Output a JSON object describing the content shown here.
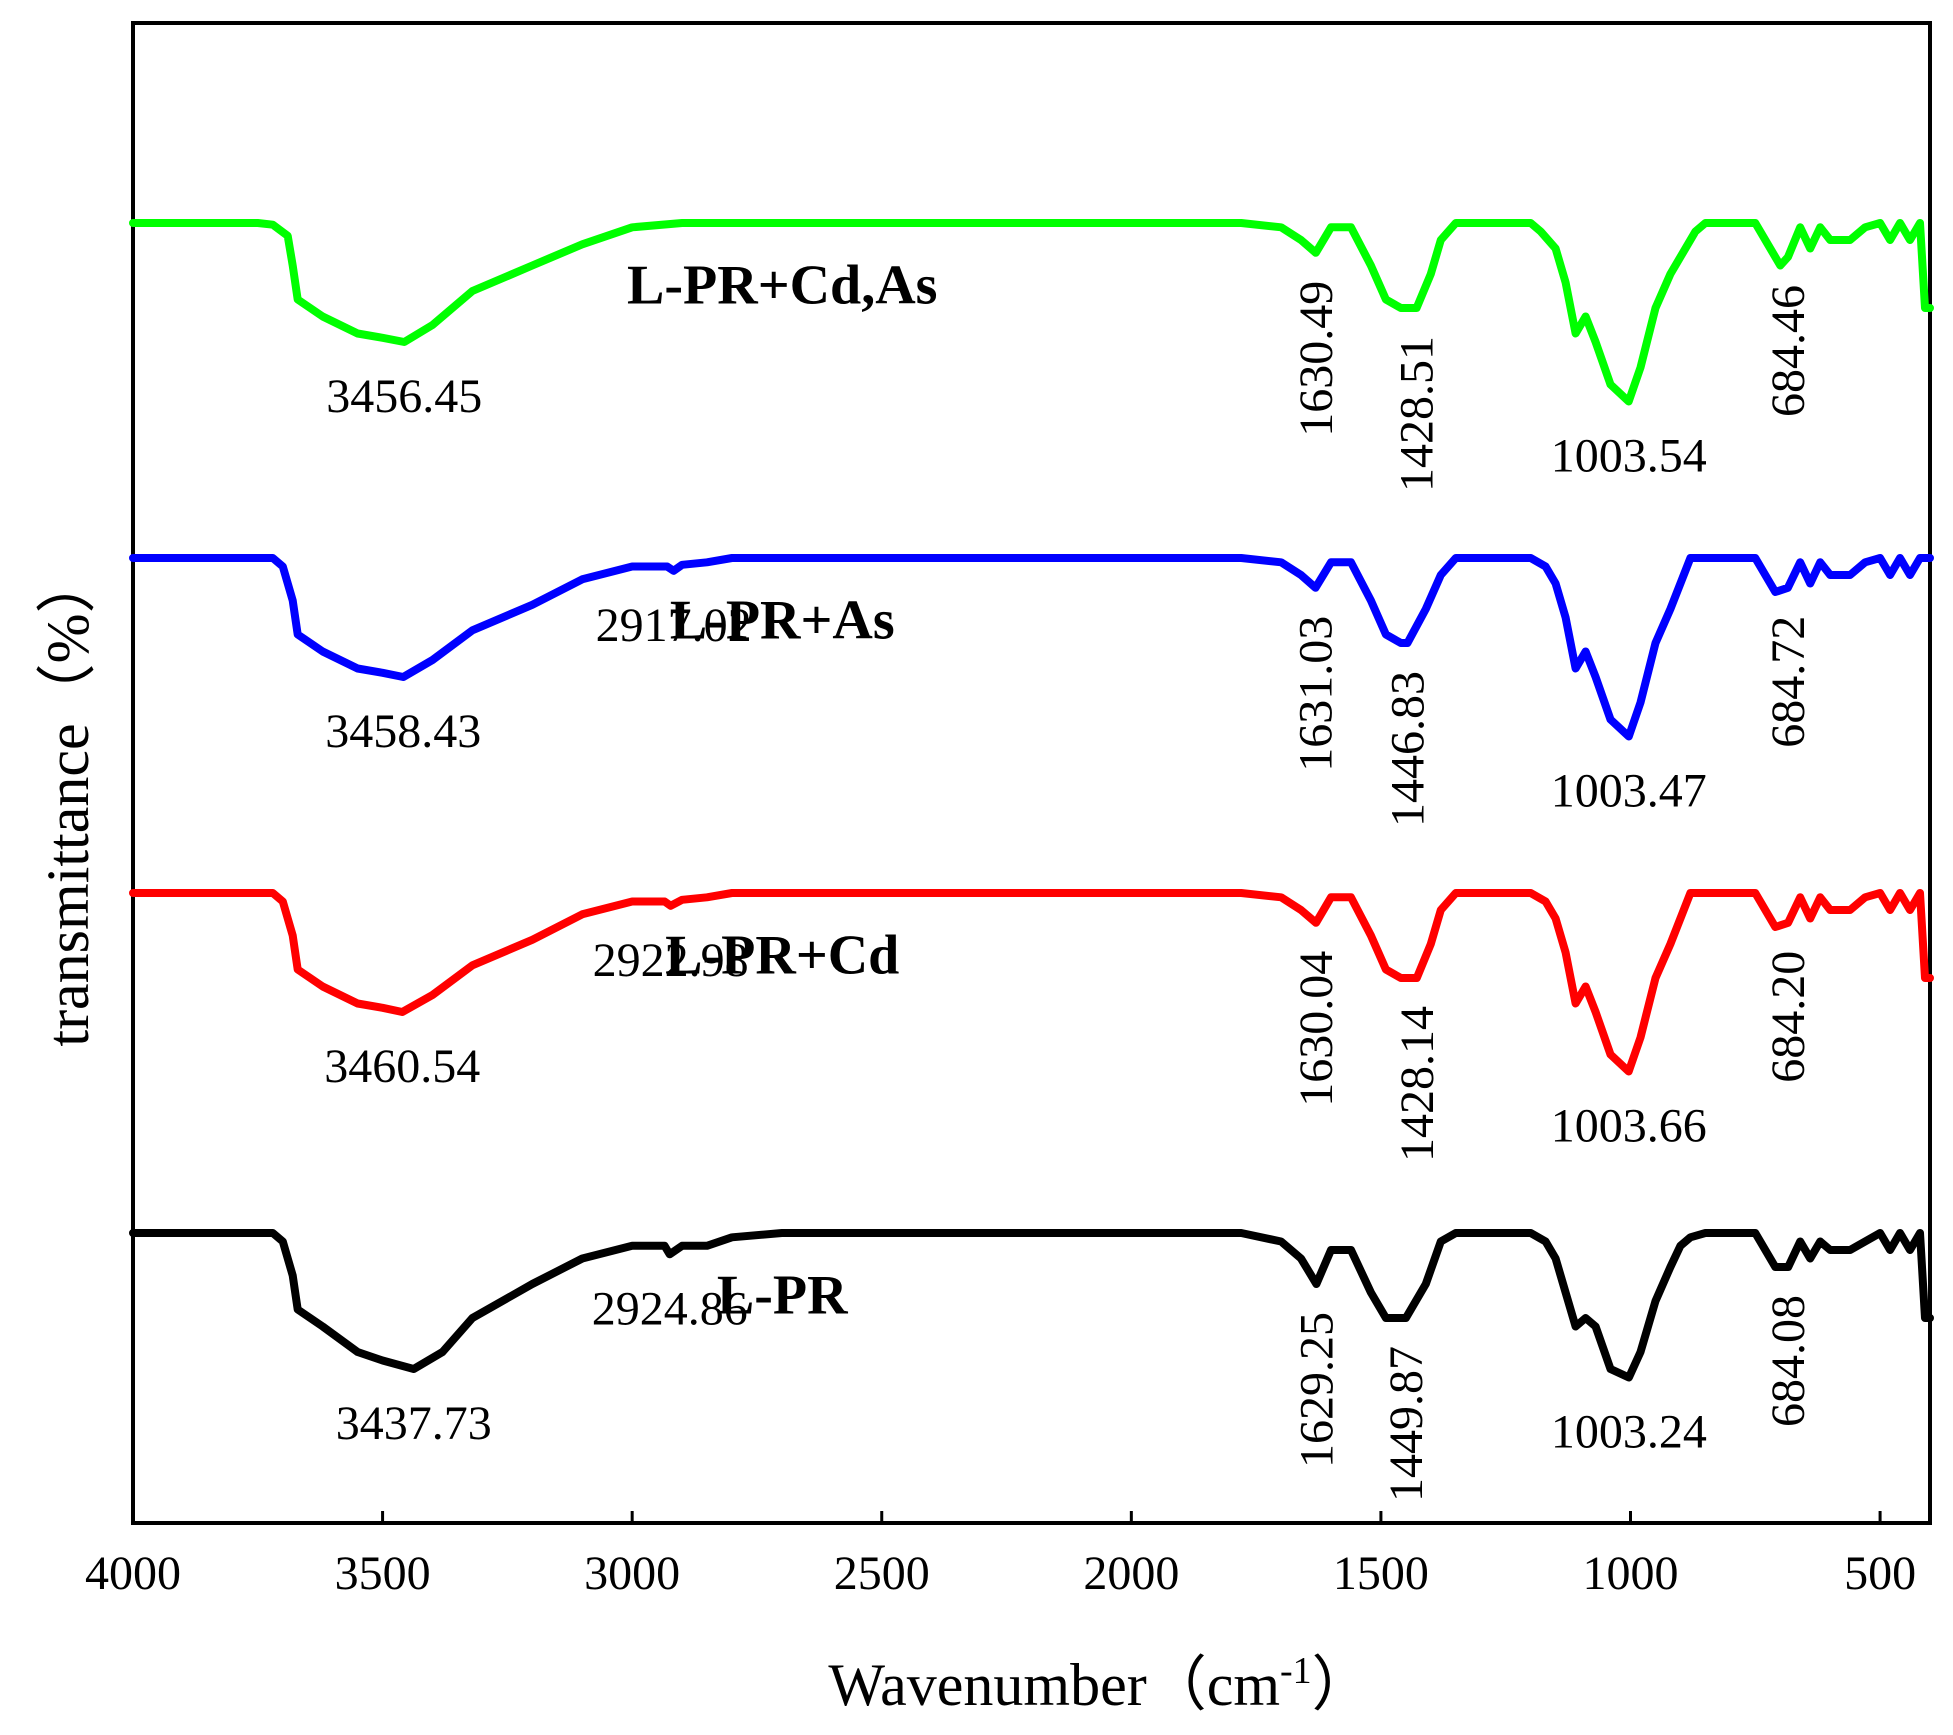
{
  "chart_data": {
    "type": "line",
    "title": "",
    "xlabel": "Wavenumber（cm",
    "xlabel_sup": "-1",
    "xlabel_close": "）",
    "ylabel": "transmittance（%）",
    "xlim": [
      4000,
      400
    ],
    "x_reversed": true,
    "y_ticks_shown": false,
    "grid": false,
    "x_ticks": [
      4000,
      3500,
      3000,
      2500,
      2000,
      1500,
      1000,
      500
    ],
    "x_tick_labels": [
      "4000",
      "3500",
      "3000",
      "2500",
      "2000",
      "1500",
      "1000",
      "500"
    ],
    "series": [
      {
        "name": "L-PR+Cd,As",
        "color": "#00ff00",
        "points": [
          [
            4000,
            0
          ],
          [
            3750,
            0
          ],
          [
            3720,
            0.2
          ],
          [
            3690,
            1.5
          ],
          [
            3680,
            5
          ],
          [
            3670,
            9
          ],
          [
            3620,
            11
          ],
          [
            3550,
            13
          ],
          [
            3500,
            13.5
          ],
          [
            3456.45,
            14
          ],
          [
            3400,
            12
          ],
          [
            3320,
            8
          ],
          [
            3200,
            5
          ],
          [
            3100,
            2.5
          ],
          [
            3000,
            0.5
          ],
          [
            2900,
            0
          ],
          [
            2000,
            0
          ],
          [
            1780,
            0
          ],
          [
            1700,
            0.5
          ],
          [
            1660,
            2
          ],
          [
            1630.49,
            3.5
          ],
          [
            1600,
            0.5
          ],
          [
            1560,
            0.5
          ],
          [
            1520,
            5
          ],
          [
            1490,
            9
          ],
          [
            1460,
            10
          ],
          [
            1428.51,
            10
          ],
          [
            1400,
            6
          ],
          [
            1380,
            2
          ],
          [
            1350,
            0
          ],
          [
            1200,
            0
          ],
          [
            1180,
            1
          ],
          [
            1150,
            3
          ],
          [
            1130,
            7
          ],
          [
            1110,
            13
          ],
          [
            1090,
            11
          ],
          [
            1070,
            14
          ],
          [
            1040,
            19
          ],
          [
            1003.54,
            21
          ],
          [
            980,
            17
          ],
          [
            950,
            10
          ],
          [
            920,
            6
          ],
          [
            900,
            4
          ],
          [
            870,
            1
          ],
          [
            850,
            0
          ],
          [
            750,
            0
          ],
          [
            700,
            5
          ],
          [
            684.46,
            4
          ],
          [
            660,
            0.5
          ],
          [
            640,
            3
          ],
          [
            620,
            0.5
          ],
          [
            600,
            2
          ],
          [
            560,
            2
          ],
          [
            530,
            0.5
          ],
          [
            500,
            0
          ],
          [
            480,
            2
          ],
          [
            460,
            0
          ],
          [
            440,
            2
          ],
          [
            420,
            0
          ],
          [
            410,
            10
          ],
          [
            400,
            10
          ]
        ],
        "label_at": [
          3100,
          -3.5
        ],
        "peaks": [
          {
            "label": "3456.45",
            "x": 3456.45,
            "rotated": false
          },
          {
            "label": "1630.49",
            "x": 1630.49,
            "rotated": true
          },
          {
            "label": "1428.51",
            "x": 1428.51,
            "rotated": true
          },
          {
            "label": "1003.54",
            "x": 1003.54,
            "rotated": false
          },
          {
            "label": "684.46",
            "x": 684.46,
            "rotated": true
          }
        ]
      },
      {
        "name": "L-PR+As",
        "color": "#0000ff",
        "points": [
          [
            4000,
            0
          ],
          [
            3720,
            0
          ],
          [
            3700,
            1
          ],
          [
            3680,
            5
          ],
          [
            3670,
            9
          ],
          [
            3620,
            11
          ],
          [
            3550,
            13
          ],
          [
            3500,
            13.5
          ],
          [
            3458.43,
            14
          ],
          [
            3400,
            12
          ],
          [
            3320,
            8.5
          ],
          [
            3200,
            5.5
          ],
          [
            3100,
            2.5
          ],
          [
            3000,
            1
          ],
          [
            2930,
            1
          ],
          [
            2917.02,
            1.5
          ],
          [
            2900,
            0.8
          ],
          [
            2850,
            0.5
          ],
          [
            2800,
            0
          ],
          [
            2700,
            0
          ],
          [
            1780,
            0
          ],
          [
            1700,
            0.5
          ],
          [
            1660,
            2
          ],
          [
            1631.03,
            3.5
          ],
          [
            1600,
            0.5
          ],
          [
            1560,
            0.5
          ],
          [
            1520,
            5
          ],
          [
            1490,
            9
          ],
          [
            1460,
            10
          ],
          [
            1446.83,
            10
          ],
          [
            1410,
            6
          ],
          [
            1380,
            2
          ],
          [
            1350,
            0
          ],
          [
            1200,
            0
          ],
          [
            1170,
            1
          ],
          [
            1150,
            3
          ],
          [
            1130,
            7
          ],
          [
            1110,
            13
          ],
          [
            1090,
            11
          ],
          [
            1070,
            14
          ],
          [
            1040,
            19
          ],
          [
            1003.47,
            21
          ],
          [
            980,
            17
          ],
          [
            950,
            10
          ],
          [
            920,
            6
          ],
          [
            900,
            3
          ],
          [
            880,
            0
          ],
          [
            850,
            0
          ],
          [
            750,
            0
          ],
          [
            710,
            4
          ],
          [
            684.72,
            3.5
          ],
          [
            660,
            0.5
          ],
          [
            640,
            3
          ],
          [
            620,
            0.5
          ],
          [
            600,
            2
          ],
          [
            560,
            2
          ],
          [
            530,
            0.5
          ],
          [
            500,
            0
          ],
          [
            480,
            2
          ],
          [
            460,
            0
          ],
          [
            440,
            2
          ],
          [
            420,
            0
          ],
          [
            400,
            0
          ]
        ],
        "label_at": [
          3100,
          -3.5
        ],
        "peaks": [
          {
            "label": "3458.43",
            "x": 3458.43,
            "rotated": false
          },
          {
            "label": "2917.02",
            "x": 2917.02,
            "rotated": false
          },
          {
            "label": "1631.03",
            "x": 1631.03,
            "rotated": true
          },
          {
            "label": "1446.83",
            "x": 1446.83,
            "rotated": true
          },
          {
            "label": "1003.47",
            "x": 1003.47,
            "rotated": false
          },
          {
            "label": "684.72",
            "x": 684.72,
            "rotated": true
          }
        ]
      },
      {
        "name": "L-PR+Cd",
        "color": "#ff0000",
        "points": [
          [
            4000,
            0
          ],
          [
            3720,
            0
          ],
          [
            3700,
            1
          ],
          [
            3680,
            5
          ],
          [
            3670,
            9
          ],
          [
            3620,
            11
          ],
          [
            3550,
            13
          ],
          [
            3500,
            13.5
          ],
          [
            3460.54,
            14
          ],
          [
            3400,
            12
          ],
          [
            3320,
            8.5
          ],
          [
            3200,
            5.5
          ],
          [
            3100,
            2.5
          ],
          [
            3000,
            1
          ],
          [
            2935,
            1
          ],
          [
            2922.98,
            1.5
          ],
          [
            2900,
            0.8
          ],
          [
            2850,
            0.5
          ],
          [
            2800,
            0
          ],
          [
            2700,
            0
          ],
          [
            1780,
            0
          ],
          [
            1700,
            0.5
          ],
          [
            1660,
            2
          ],
          [
            1630.04,
            3.5
          ],
          [
            1600,
            0.5
          ],
          [
            1560,
            0.5
          ],
          [
            1520,
            5
          ],
          [
            1490,
            9
          ],
          [
            1460,
            10
          ],
          [
            1428.14,
            10
          ],
          [
            1400,
            6
          ],
          [
            1380,
            2
          ],
          [
            1350,
            0
          ],
          [
            1200,
            0
          ],
          [
            1170,
            1
          ],
          [
            1150,
            3
          ],
          [
            1130,
            7
          ],
          [
            1110,
            13
          ],
          [
            1090,
            11
          ],
          [
            1070,
            14
          ],
          [
            1040,
            19
          ],
          [
            1003.66,
            21
          ],
          [
            980,
            17
          ],
          [
            950,
            10
          ],
          [
            920,
            6
          ],
          [
            900,
            3
          ],
          [
            880,
            0
          ],
          [
            850,
            0
          ],
          [
            750,
            0
          ],
          [
            710,
            4
          ],
          [
            684.2,
            3.5
          ],
          [
            660,
            0.5
          ],
          [
            640,
            3
          ],
          [
            620,
            0.5
          ],
          [
            600,
            2
          ],
          [
            560,
            2
          ],
          [
            530,
            0.5
          ],
          [
            500,
            0
          ],
          [
            480,
            2
          ],
          [
            460,
            0
          ],
          [
            440,
            2
          ],
          [
            420,
            0
          ],
          [
            410,
            10
          ],
          [
            400,
            10
          ]
        ],
        "label_at": [
          3100,
          -3.5
        ],
        "peaks": [
          {
            "label": "3460.54",
            "x": 3460.54,
            "rotated": false
          },
          {
            "label": "2922.98",
            "x": 2922.98,
            "rotated": false
          },
          {
            "label": "1630.04",
            "x": 1630.04,
            "rotated": true
          },
          {
            "label": "1428.14",
            "x": 1428.14,
            "rotated": true
          },
          {
            "label": "1003.66",
            "x": 1003.66,
            "rotated": false
          },
          {
            "label": "684.20",
            "x": 684.2,
            "rotated": true
          }
        ]
      },
      {
        "name": "L-PR",
        "color": "#000000",
        "points": [
          [
            4000,
            0
          ],
          [
            3720,
            0
          ],
          [
            3700,
            1
          ],
          [
            3680,
            5
          ],
          [
            3670,
            9
          ],
          [
            3620,
            11
          ],
          [
            3550,
            14
          ],
          [
            3500,
            15
          ],
          [
            3437.73,
            16
          ],
          [
            3380,
            14
          ],
          [
            3320,
            10
          ],
          [
            3200,
            6
          ],
          [
            3100,
            3
          ],
          [
            3000,
            1.5
          ],
          [
            2935,
            1.5
          ],
          [
            2924.86,
            2.5
          ],
          [
            2900,
            1.5
          ],
          [
            2850,
            1.5
          ],
          [
            2800,
            0.5
          ],
          [
            2700,
            0
          ],
          [
            1780,
            0
          ],
          [
            1700,
            1
          ],
          [
            1660,
            3
          ],
          [
            1629.25,
            6
          ],
          [
            1600,
            2
          ],
          [
            1560,
            2
          ],
          [
            1520,
            7
          ],
          [
            1490,
            10
          ],
          [
            1470,
            10
          ],
          [
            1449.87,
            10
          ],
          [
            1410,
            6
          ],
          [
            1380,
            1
          ],
          [
            1350,
            0
          ],
          [
            1200,
            0
          ],
          [
            1170,
            1
          ],
          [
            1150,
            3
          ],
          [
            1130,
            7
          ],
          [
            1110,
            11
          ],
          [
            1090,
            10
          ],
          [
            1070,
            11
          ],
          [
            1040,
            16
          ],
          [
            1003.24,
            17
          ],
          [
            980,
            14
          ],
          [
            950,
            8
          ],
          [
            920,
            4
          ],
          [
            900,
            1.5
          ],
          [
            880,
            0.5
          ],
          [
            850,
            0
          ],
          [
            750,
            0
          ],
          [
            710,
            4
          ],
          [
            684.08,
            4
          ],
          [
            660,
            1
          ],
          [
            640,
            3
          ],
          [
            620,
            1
          ],
          [
            600,
            2
          ],
          [
            560,
            2
          ],
          [
            530,
            1
          ],
          [
            500,
            0
          ],
          [
            480,
            2
          ],
          [
            460,
            0
          ],
          [
            440,
            2
          ],
          [
            420,
            0
          ],
          [
            410,
            10
          ],
          [
            400,
            10
          ]
        ],
        "label_at": [
          3100,
          -3.5
        ],
        "peaks": [
          {
            "label": "3437.73",
            "x": 3437.73,
            "rotated": false
          },
          {
            "label": "2924.86",
            "x": 2924.86,
            "rotated": false
          },
          {
            "label": "1629.25",
            "x": 1629.25,
            "rotated": true
          },
          {
            "label": "1449.87",
            "x": 1449.87,
            "rotated": true
          },
          {
            "label": "1003.24",
            "x": 1003.24,
            "rotated": false
          },
          {
            "label": "684.08",
            "x": 684.08,
            "rotated": true
          }
        ]
      }
    ]
  }
}
